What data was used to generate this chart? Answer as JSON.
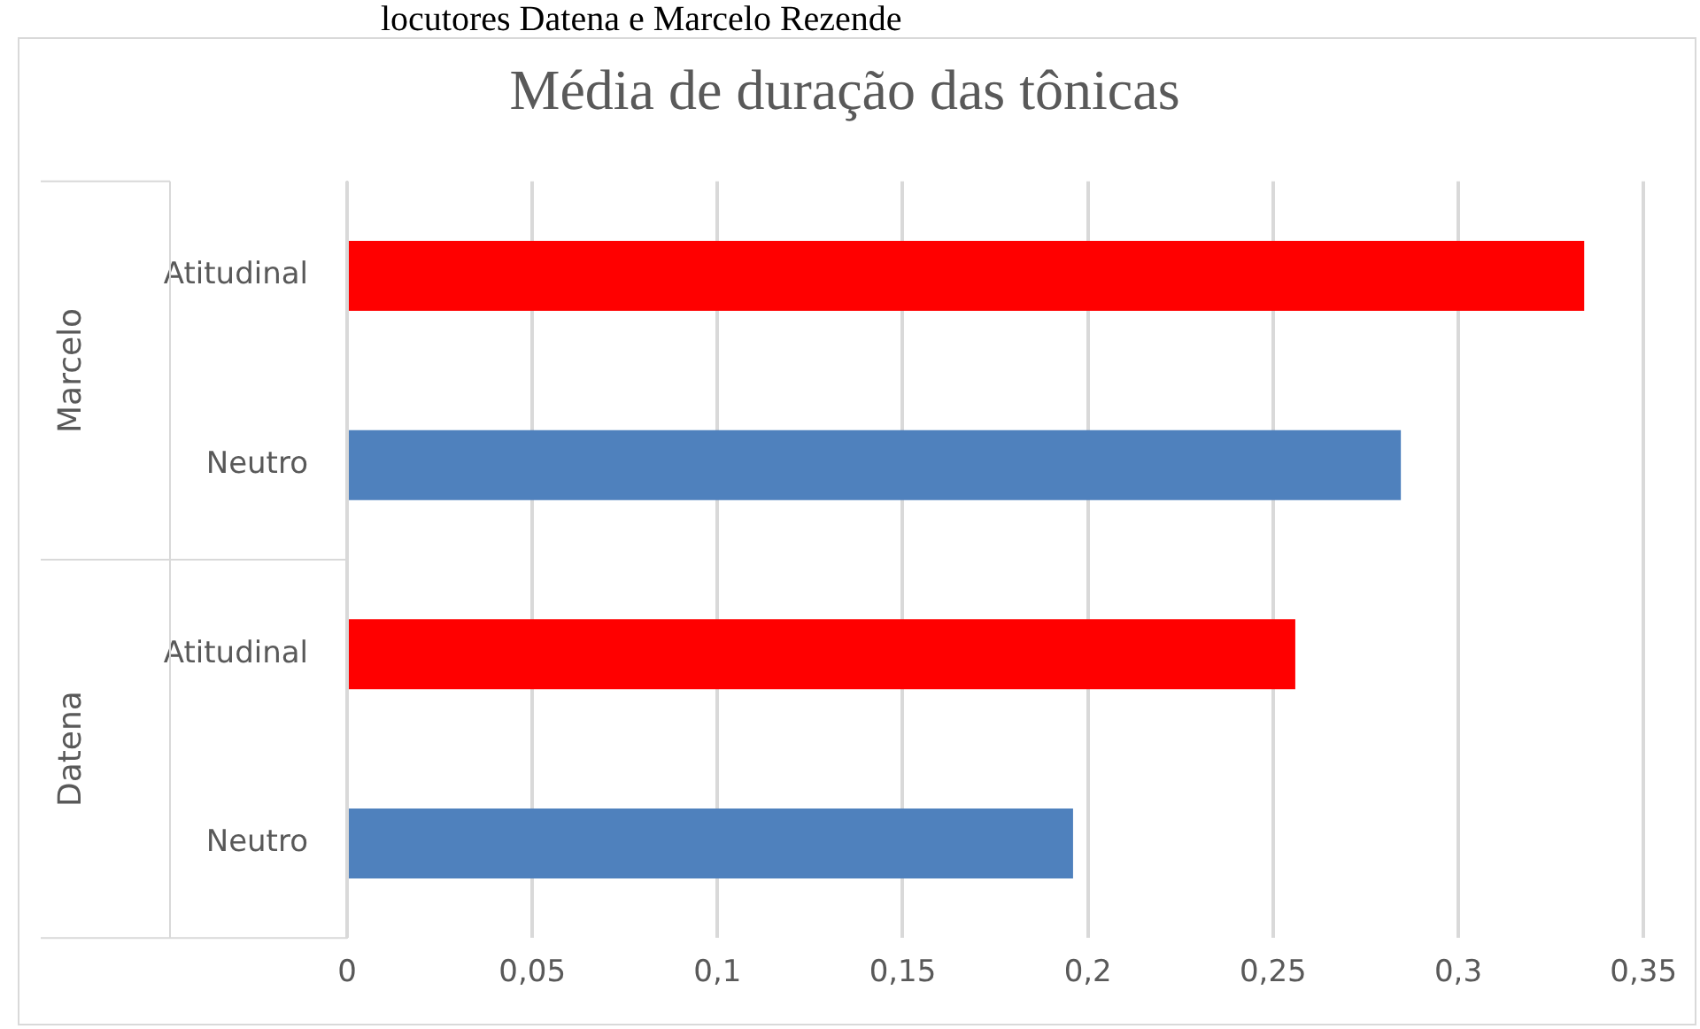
{
  "chart_data": {
    "type": "bar",
    "orientation": "horizontal",
    "title": "Média de duração das tônicas",
    "categories": [
      "Atitudinal",
      "Neutro",
      "Atitudinal",
      "Neutro"
    ],
    "values": [
      0.334,
      0.2845,
      0.256,
      0.196
    ],
    "colors": [
      "#ff0000",
      "#4f81bd",
      "#ff0000",
      "#4f81bd"
    ],
    "xlim": [
      0,
      0.35
    ],
    "xticks": [
      0,
      {
        "value": 0.05,
        "label": "0,05"
      },
      {
        "value": 0.1,
        "label": "0,1"
      },
      {
        "value": 0.15,
        "label": "0,15"
      },
      {
        "value": 0.2,
        "label": "0,2"
      },
      {
        "value": 0.25,
        "label": "0,25"
      },
      {
        "value": 0.3,
        "label": "0,3"
      },
      {
        "value": 0.35,
        "label": "0,35"
      }
    ],
    "grid": "x",
    "legend": false,
    "annotations": [
      "locutores Datena e Marcelo Rezende",
      "Marcelo",
      "Datena"
    ]
  }
}
